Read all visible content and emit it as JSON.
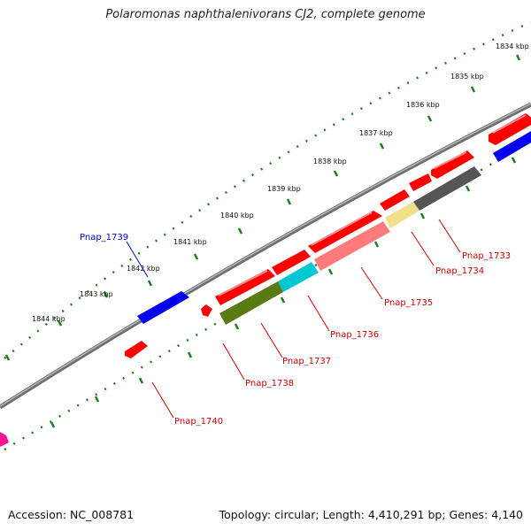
{
  "title": "Polaromonas naphthalenivorans CJ2, complete genome",
  "accession": "Accession: NC_008781",
  "summary": "Topology: circular; Length: 4,410,291 bp; Genes: 4,140",
  "kbp_labels": [
    "1834 kbp",
    "1835 kbp",
    "1836 kbp",
    "1837 kbp",
    "1838 kbp",
    "1839 kbp",
    "1840 kbp",
    "1841 kbp",
    "1842 kbp",
    "1843 kbp",
    "1844 kbp"
  ],
  "gene_labels": [
    "Pnap_1739",
    "Pnap_1733",
    "Pnap_1734",
    "Pnap_1735",
    "Pnap_1736",
    "Pnap_1737",
    "Pnap_1738",
    "Pnap_1740"
  ],
  "colors": {
    "forward_cds": "#ff0000",
    "reverse_cds_blue": "#0000ff",
    "backbone": "#888888",
    "tick": "#1a7f1a",
    "label_red": "#cc0000",
    "label_blue": "#0000cc"
  }
}
